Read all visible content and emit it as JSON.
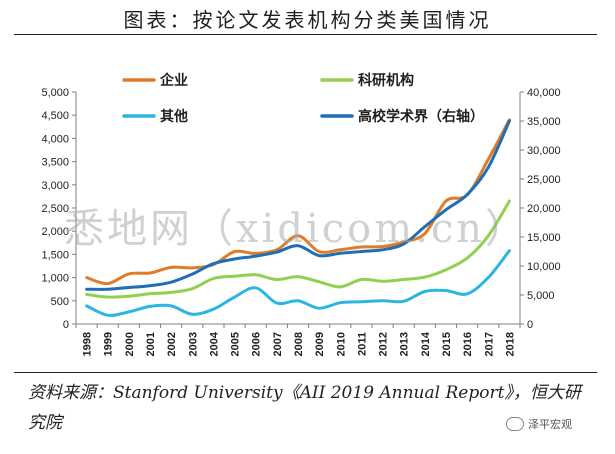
{
  "title": "图表：按论文发表机构分类美国情况",
  "source": "资料来源：Stanford University《AII 2019 Annual Report》，恒大研究院",
  "watermark": "悉地网（xidicom.cn）",
  "badge": "泽平宏观",
  "chart_data": {
    "type": "line",
    "x": [
      "1998",
      "1999",
      "2000",
      "2001",
      "2002",
      "2003",
      "2004",
      "2005",
      "2006",
      "2007",
      "2008",
      "2009",
      "2010",
      "2011",
      "2012",
      "2013",
      "2014",
      "2015",
      "2016",
      "2017",
      "2018"
    ],
    "left_axis": {
      "ticks": [
        "0",
        "500",
        "1,000",
        "1,500",
        "2,000",
        "2,500",
        "3,000",
        "3,500",
        "4,000",
        "4,500",
        "5,000"
      ],
      "ylim": [
        0,
        5000
      ]
    },
    "right_axis": {
      "ticks": [
        "0",
        "5,000",
        "10,000",
        "15,000",
        "20,000",
        "25,000",
        "30,000",
        "35,000",
        "40,000"
      ],
      "ylim": [
        0,
        40000
      ]
    },
    "series": [
      {
        "name": "企业",
        "axis": "left",
        "color": "#e07b28",
        "values": [
          1000,
          870,
          1080,
          1100,
          1220,
          1210,
          1280,
          1560,
          1520,
          1600,
          1900,
          1560,
          1600,
          1660,
          1670,
          1770,
          1950,
          2650,
          2780,
          3550,
          4400
        ]
      },
      {
        "name": "科研机构",
        "axis": "left",
        "color": "#92d050",
        "values": [
          640,
          580,
          600,
          650,
          680,
          760,
          980,
          1030,
          1060,
          960,
          1020,
          910,
          800,
          960,
          920,
          960,
          1010,
          1170,
          1420,
          1900,
          2650
        ]
      },
      {
        "name": "其他",
        "axis": "left",
        "color": "#2bb5e3",
        "values": [
          390,
          190,
          260,
          380,
          390,
          210,
          320,
          580,
          780,
          450,
          500,
          340,
          460,
          480,
          500,
          490,
          700,
          720,
          650,
          1000,
          1580
        ]
      },
      {
        "name": "高校学术界（右轴）",
        "axis": "right",
        "color": "#1e6fb5",
        "values": [
          6000,
          6000,
          6300,
          6600,
          7200,
          8600,
          10400,
          11200,
          11700,
          12400,
          13500,
          11800,
          12200,
          12500,
          12800,
          13800,
          16800,
          19700,
          22300,
          27000,
          35000
        ]
      }
    ],
    "legend_position": "top",
    "grid": false
  }
}
